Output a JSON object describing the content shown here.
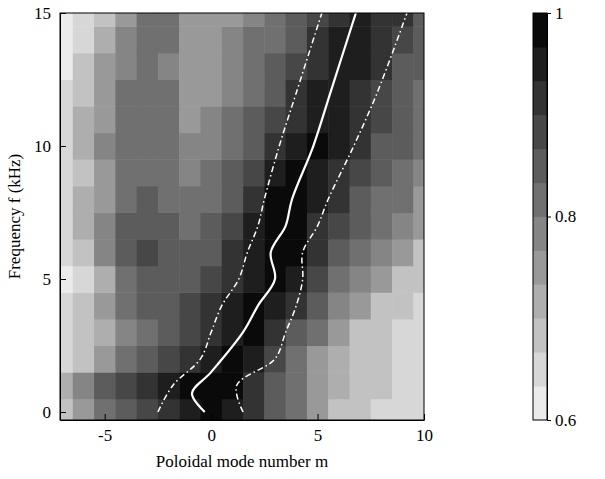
{
  "chart_data": {
    "type": "heatmap",
    "x_label": "Poloidal mode number m",
    "y_label": "Frequency f (kHz)",
    "xlim": [
      -7.1,
      10
    ],
    "ylim": [
      -0.3,
      15
    ],
    "xticks": [
      -5,
      0,
      5,
      10
    ],
    "yticks": [
      0,
      5,
      10,
      15
    ],
    "cells": {
      "x": [
        -7,
        -6,
        -5,
        -4,
        -3,
        -2,
        -1,
        0,
        1,
        2,
        3,
        4,
        5,
        6,
        7,
        8,
        9,
        10
      ],
      "y": [
        0,
        1,
        2,
        3,
        4,
        5,
        6,
        7,
        8,
        9,
        10,
        11,
        12,
        13,
        14,
        15
      ],
      "values": [
        [
          0.7,
          0.74,
          0.8,
          0.85,
          0.88,
          0.92,
          0.95,
          0.97,
          0.95,
          0.9,
          0.85,
          0.8,
          0.75,
          0.7,
          0.68,
          0.66,
          0.65,
          0.64
        ],
        [
          0.72,
          0.78,
          0.84,
          0.88,
          0.92,
          0.96,
          0.98,
          0.99,
          0.97,
          0.92,
          0.86,
          0.8,
          0.75,
          0.72,
          0.7,
          0.68,
          0.66,
          0.65
        ],
        [
          0.66,
          0.7,
          0.76,
          0.82,
          0.86,
          0.88,
          0.92,
          0.96,
          0.97,
          0.94,
          0.88,
          0.82,
          0.76,
          0.72,
          0.7,
          0.68,
          0.66,
          0.64
        ],
        [
          0.64,
          0.68,
          0.72,
          0.78,
          0.82,
          0.85,
          0.88,
          0.92,
          0.96,
          0.97,
          0.93,
          0.86,
          0.8,
          0.74,
          0.7,
          0.68,
          0.66,
          0.64
        ],
        [
          0.64,
          0.68,
          0.74,
          0.8,
          0.84,
          0.86,
          0.88,
          0.9,
          0.94,
          0.97,
          0.96,
          0.9,
          0.84,
          0.78,
          0.74,
          0.7,
          0.68,
          0.66
        ],
        [
          0.62,
          0.66,
          0.72,
          0.8,
          0.84,
          0.85,
          0.86,
          0.88,
          0.92,
          0.96,
          0.98,
          0.94,
          0.88,
          0.82,
          0.78,
          0.74,
          0.7,
          0.68
        ],
        [
          0.64,
          0.7,
          0.78,
          0.84,
          0.88,
          0.86,
          0.84,
          0.86,
          0.9,
          0.96,
          0.99,
          0.97,
          0.9,
          0.86,
          0.82,
          0.78,
          0.74,
          0.7
        ],
        [
          0.66,
          0.72,
          0.78,
          0.84,
          0.86,
          0.84,
          0.82,
          0.84,
          0.88,
          0.94,
          0.98,
          0.98,
          0.92,
          0.88,
          0.84,
          0.8,
          0.78,
          0.74
        ],
        [
          0.66,
          0.72,
          0.76,
          0.82,
          0.84,
          0.82,
          0.8,
          0.82,
          0.86,
          0.92,
          0.97,
          0.98,
          0.94,
          0.9,
          0.86,
          0.82,
          0.8,
          0.76
        ],
        [
          0.64,
          0.7,
          0.76,
          0.8,
          0.82,
          0.8,
          0.78,
          0.8,
          0.84,
          0.88,
          0.94,
          0.97,
          0.96,
          0.92,
          0.88,
          0.84,
          0.82,
          0.78
        ],
        [
          0.66,
          0.72,
          0.78,
          0.82,
          0.82,
          0.8,
          0.78,
          0.78,
          0.82,
          0.86,
          0.9,
          0.95,
          0.97,
          0.94,
          0.9,
          0.86,
          0.84,
          0.8
        ],
        [
          0.66,
          0.72,
          0.76,
          0.8,
          0.82,
          0.8,
          0.76,
          0.78,
          0.8,
          0.84,
          0.88,
          0.92,
          0.96,
          0.95,
          0.92,
          0.88,
          0.84,
          0.82
        ],
        [
          0.64,
          0.7,
          0.76,
          0.8,
          0.82,
          0.8,
          0.76,
          0.76,
          0.78,
          0.82,
          0.86,
          0.9,
          0.94,
          0.96,
          0.93,
          0.88,
          0.86,
          0.82
        ],
        [
          0.62,
          0.68,
          0.74,
          0.78,
          0.8,
          0.78,
          0.76,
          0.76,
          0.78,
          0.8,
          0.84,
          0.88,
          0.92,
          0.95,
          0.94,
          0.9,
          0.86,
          0.84
        ],
        [
          0.62,
          0.66,
          0.72,
          0.78,
          0.8,
          0.8,
          0.76,
          0.76,
          0.78,
          0.8,
          0.82,
          0.86,
          0.9,
          0.94,
          0.95,
          0.92,
          0.88,
          0.84
        ],
        [
          0.6,
          0.64,
          0.7,
          0.76,
          0.8,
          0.8,
          0.76,
          0.76,
          0.76,
          0.78,
          0.8,
          0.84,
          0.88,
          0.92,
          0.95,
          0.93,
          0.9,
          0.86
        ]
      ]
    },
    "colorbar": {
      "range": [
        0.6,
        1
      ],
      "ticks": [
        0.6,
        0.8,
        1
      ]
    },
    "series": [
      {
        "type": "line",
        "color": "#ffffff",
        "line_style": "solid",
        "x": [
          -0.3,
          -0.9,
          0,
          1.5,
          2.2,
          3,
          2.8,
          3.5,
          3.8,
          4.8,
          5.6,
          6.8
        ],
        "values": [
          0,
          0.7,
          1.5,
          3,
          4,
          5,
          6,
          7,
          8,
          10,
          12,
          15
        ]
      },
      {
        "type": "line",
        "color": "#ffffff",
        "line_style": "dashed",
        "x": [
          -2.5,
          -1.8,
          -0.5,
          0,
          0.5,
          1.3,
          1.7,
          2.2,
          2.5,
          3.2,
          4,
          5.2
        ],
        "values": [
          0,
          1,
          2,
          3,
          4,
          5,
          6,
          7,
          8,
          10,
          12,
          15
        ]
      },
      {
        "type": "line",
        "color": "#ffffff",
        "line_style": "dashed",
        "x": [
          1.5,
          1.2,
          3,
          3.5,
          4,
          4.3,
          4.3,
          5,
          5.5,
          6.7,
          7.8,
          9.2
        ],
        "values": [
          0,
          1,
          2,
          3,
          4,
          5,
          6,
          7,
          8,
          10,
          12,
          15
        ]
      }
    ]
  }
}
